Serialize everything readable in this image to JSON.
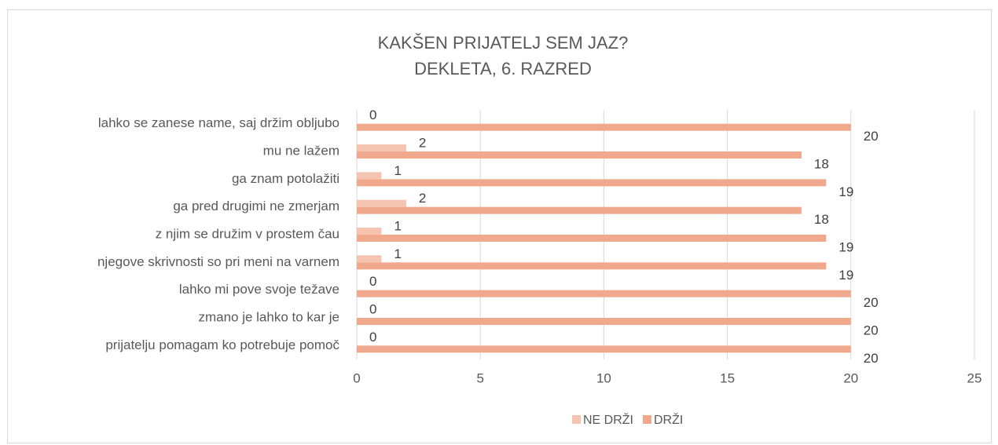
{
  "chart_data": {
    "type": "hbar",
    "title": "KAKŠEN PRIJATELJ SEM JAZ?",
    "subtitle": "DEKLETA, 6. RAZRED",
    "categories": [
      "lahko se zanese name, saj držim obljubo",
      "mu ne lažem",
      "ga znam potolažiti",
      "ga pred drugimi ne zmerjam",
      "z njim se družim v prostem čau",
      "njegove skrivnosti so pri meni na varnem",
      "lahko mi pove svoje težave",
      "zmano je lahko to kar je",
      "prijatelju pomagam ko potrebuje pomoč"
    ],
    "series": [
      {
        "name": "NE DRŽI",
        "color": "#f5c4b0",
        "values": [
          0,
          2,
          1,
          2,
          1,
          1,
          0,
          0,
          0
        ]
      },
      {
        "name": "DRŽI",
        "color": "#f0a98c",
        "values": [
          20,
          18,
          19,
          18,
          19,
          19,
          20,
          20,
          20
        ]
      }
    ],
    "xlim": [
      0,
      25
    ],
    "xticks": [
      0,
      5,
      10,
      15,
      20,
      25
    ],
    "grid": true,
    "legend": "bottom"
  }
}
